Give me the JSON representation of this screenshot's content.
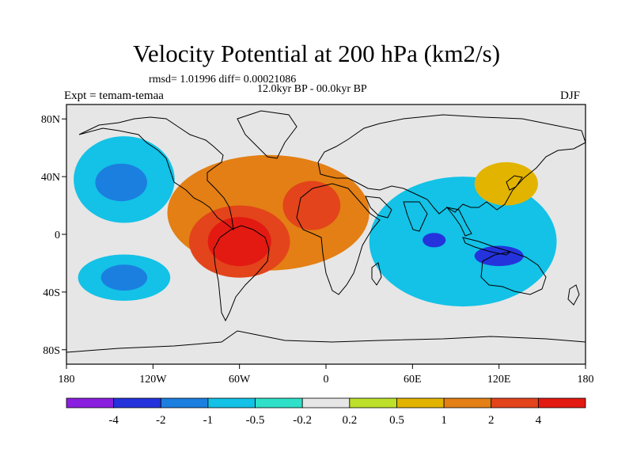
{
  "chart_data": {
    "type": "filled-contour-map",
    "title": "Velocity Potential at 200 hPa (km2/s)",
    "stats_text": "rmsd= 1.01996 diff= 0.00021086",
    "period_text": "12.0kyr BP - 00.0kyr BP",
    "experiment_text": "Expt = temam-temaa",
    "season": "DJF",
    "lon_range": [
      -180,
      180
    ],
    "lat_range": [
      -90,
      90
    ],
    "x_ticks": [
      {
        "lon": -180,
        "label": "180"
      },
      {
        "lon": -120,
        "label": "120W"
      },
      {
        "lon": -60,
        "label": "60W"
      },
      {
        "lon": 0,
        "label": "0"
      },
      {
        "lon": 60,
        "label": "60E"
      },
      {
        "lon": 120,
        "label": "120E"
      },
      {
        "lon": 180,
        "label": "180"
      }
    ],
    "y_ticks": [
      {
        "lat": 80,
        "label": "80N"
      },
      {
        "lat": 40,
        "label": "40N"
      },
      {
        "lat": 0,
        "label": "0"
      },
      {
        "lat": -40,
        "label": "40S"
      },
      {
        "lat": -80,
        "label": "80S"
      }
    ],
    "colorbar_levels": [
      "-4",
      "-2",
      "-1",
      "-0.5",
      "-0.2",
      "0.2",
      "0.5",
      "1",
      "2",
      "4"
    ],
    "colorbar_colors": [
      "#8a1fe0",
      "#2433dc",
      "#1b7fe0",
      "#13c2e6",
      "#2ee0c8",
      "#e6e6e6",
      "#bde02a",
      "#e2b400",
      "#e37f14",
      "#e3441b",
      "#e31a12"
    ],
    "regions": [
      {
        "label": "N Pacific low",
        "level": -1,
        "center": [
          -140,
          38
        ],
        "radius": [
          35,
          30
        ]
      },
      {
        "label": "N Pacific core",
        "level": -2,
        "center": [
          -142,
          36
        ],
        "radius": [
          18,
          13
        ]
      },
      {
        "label": "S Pacific low",
        "level": -1,
        "center": [
          -140,
          -30
        ],
        "radius": [
          32,
          16
        ]
      },
      {
        "label": "S Pacific core",
        "level": -2,
        "center": [
          -140,
          -30
        ],
        "radius": [
          16,
          9
        ]
      },
      {
        "label": "Atlantic-Africa high",
        "level": 1,
        "center": [
          -40,
          15
        ],
        "radius": [
          70,
          40
        ]
      },
      {
        "label": "South America high",
        "level": 2,
        "center": [
          -60,
          -5
        ],
        "radius": [
          35,
          25
        ]
      },
      {
        "label": "Africa high",
        "level": 2,
        "center": [
          -10,
          20
        ],
        "radius": [
          20,
          17
        ]
      },
      {
        "label": "South America core",
        "level": 4,
        "center": [
          -60,
          -5
        ],
        "radius": [
          22,
          17
        ]
      },
      {
        "label": "Indo-Pacific low",
        "level": -1,
        "center": [
          95,
          -5
        ],
        "radius": [
          65,
          45
        ]
      },
      {
        "label": "Indian Ocean core",
        "level": -4,
        "center": [
          75,
          -4
        ],
        "radius": [
          8,
          5
        ]
      },
      {
        "label": "Maritime core",
        "level": -4,
        "center": [
          120,
          -15
        ],
        "radius": [
          17,
          7
        ]
      },
      {
        "label": "East Asia high",
        "level": 0.5,
        "center": [
          125,
          35
        ],
        "radius": [
          22,
          15
        ]
      }
    ]
  }
}
